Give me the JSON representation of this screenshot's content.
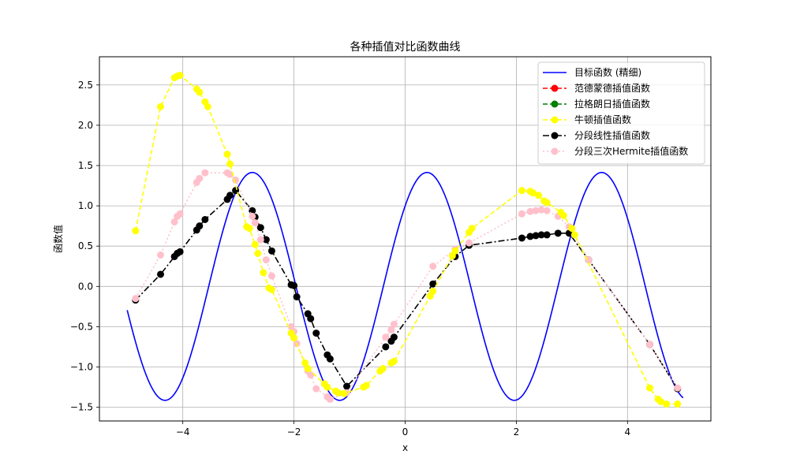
{
  "chart_data": {
    "type": "line",
    "title": "各种插值对比函数曲线",
    "xlabel": "x",
    "ylabel": "函数值",
    "xlim": [
      -5.5,
      5.5
    ],
    "ylim": [
      -1.67,
      2.85
    ],
    "xticks": [
      -4,
      -2,
      0,
      2,
      4
    ],
    "xtick_labels": [
      "−4",
      "−2",
      "0",
      "2",
      "4"
    ],
    "yticks": [
      -1.5,
      -1.0,
      -0.5,
      0.0,
      0.5,
      1.0,
      1.5,
      2.0,
      2.5
    ],
    "ytick_labels": [
      "−1.5",
      "−1.0",
      "−0.5",
      "0.0",
      "0.5",
      "1.0",
      "1.5",
      "2.0",
      "2.5"
    ],
    "grid": true,
    "legend_position": "top-right",
    "target": {
      "name": "目标函数 (精细)",
      "color": "#0000ff",
      "amplitude": 1.414,
      "frequency": 2.0,
      "phase": 0.785,
      "x_range": [
        -5,
        5
      ]
    },
    "series": [
      {
        "name": "目标函数 (精细)",
        "color": "#0000ff",
        "style": "solid",
        "marker": "none"
      },
      {
        "name": "范德蒙德插值函数",
        "color": "#ff0000",
        "style": "dashed",
        "marker": "circle"
      },
      {
        "name": "拉格朗日插值函数",
        "color": "#008000",
        "style": "dashed",
        "marker": "circle"
      },
      {
        "name": "牛顿插值函数",
        "color": "#ffff00",
        "style": "dashed",
        "marker": "circle",
        "x": [
          -4.85,
          -4.4,
          -4.15,
          -4.1,
          -4.05,
          -3.75,
          -3.7,
          -3.6,
          -3.55,
          -3.2,
          -3.15,
          -2.85,
          -2.8,
          -2.7,
          -2.65,
          -2.55,
          -2.45,
          -2.4,
          -2.05,
          -2.0,
          -1.8,
          -1.75,
          -1.45,
          -1.4,
          -1.25,
          -1.2,
          -1.1,
          -0.75,
          -0.7,
          -0.45,
          -0.4,
          -0.25,
          -0.2,
          0.45,
          0.5,
          0.85,
          0.9,
          1.15,
          1.2,
          2.1,
          2.25,
          2.3,
          2.4,
          2.5,
          2.55,
          2.8,
          2.85,
          3.0,
          3.05,
          4.4,
          4.55,
          4.6,
          4.7,
          4.9
        ],
        "values": [
          0.69,
          2.23,
          2.59,
          2.61,
          2.62,
          2.45,
          2.41,
          2.29,
          2.23,
          1.64,
          1.52,
          0.74,
          0.72,
          0.52,
          0.41,
          0.17,
          -0.02,
          -0.04,
          -0.58,
          -0.64,
          -0.95,
          -1.02,
          -1.21,
          -1.25,
          -1.3,
          -1.32,
          -1.33,
          -1.25,
          -1.23,
          -1.05,
          -1.02,
          -0.95,
          -0.93,
          -0.12,
          -0.06,
          0.38,
          0.44,
          0.67,
          0.72,
          1.19,
          1.18,
          1.16,
          1.13,
          1.06,
          1.04,
          0.92,
          0.88,
          0.72,
          0.64,
          -1.26,
          -1.4,
          -1.43,
          -1.46,
          -1.46
        ]
      },
      {
        "name": "分段线性插值函数",
        "color": "#000000",
        "style": "dashdot",
        "marker": "circle",
        "x": [
          -4.85,
          -4.4,
          -4.15,
          -4.1,
          -4.05,
          -3.75,
          -3.7,
          -3.6,
          -3.2,
          -3.15,
          -3.05,
          -2.75,
          -2.7,
          -2.6,
          -2.5,
          -2.4,
          -2.05,
          -2.0,
          -1.95,
          -1.75,
          -1.7,
          -1.6,
          -1.4,
          -1.35,
          -1.05,
          -0.35,
          -0.25,
          -0.2,
          0.5,
          0.9,
          1.15,
          2.1,
          2.25,
          2.35,
          2.45,
          2.55,
          2.75,
          2.95,
          3.3,
          4.4,
          4.9
        ],
        "values": [
          -0.17,
          0.15,
          0.37,
          0.41,
          0.43,
          0.7,
          0.75,
          0.83,
          1.08,
          1.13,
          1.19,
          0.94,
          0.86,
          0.73,
          0.58,
          0.44,
          0.02,
          0.01,
          -0.13,
          -0.34,
          -0.4,
          -0.58,
          -0.85,
          -0.9,
          -1.24,
          -0.75,
          -0.68,
          -0.63,
          0.03,
          0.37,
          0.51,
          0.6,
          0.62,
          0.63,
          0.64,
          0.64,
          0.66,
          0.66,
          0.33,
          -0.72,
          -1.27
        ]
      },
      {
        "name": "分段三次Hermite插值函数",
        "color": "#ffc0cb",
        "style": "dotted",
        "marker": "circle",
        "x": [
          -4.85,
          -4.4,
          -4.15,
          -4.1,
          -4.05,
          -3.75,
          -3.7,
          -3.6,
          -3.2,
          -3.15,
          -3.05,
          -2.75,
          -2.7,
          -2.6,
          -2.5,
          -2.4,
          -2.05,
          -2.0,
          -1.95,
          -1.75,
          -1.7,
          -1.6,
          -1.4,
          -1.35,
          -1.05,
          -0.35,
          -0.25,
          -0.2,
          0.5,
          0.9,
          1.15,
          2.1,
          2.25,
          2.35,
          2.45,
          2.55,
          2.75,
          2.95,
          3.3,
          4.4,
          4.9
        ],
        "values": [
          -0.15,
          0.39,
          0.8,
          0.87,
          0.9,
          1.29,
          1.34,
          1.41,
          1.41,
          1.39,
          1.32,
          0.87,
          0.79,
          0.58,
          0.33,
          0.13,
          -0.5,
          -0.56,
          -0.71,
          -1.05,
          -1.1,
          -1.27,
          -1.37,
          -1.4,
          -1.32,
          -0.63,
          -0.54,
          -0.47,
          0.25,
          0.46,
          0.54,
          0.9,
          0.93,
          0.94,
          0.95,
          0.94,
          0.87,
          0.74,
          0.33,
          -0.72,
          -1.26
        ]
      }
    ]
  }
}
